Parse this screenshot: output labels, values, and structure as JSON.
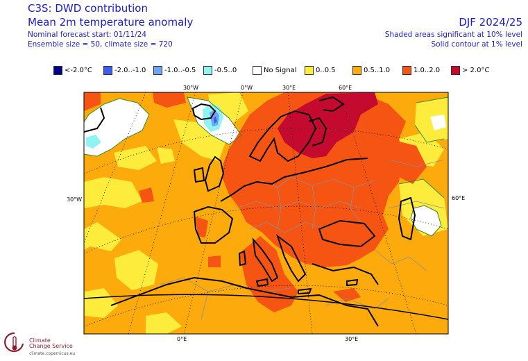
{
  "header": {
    "title": "C3S: DWD contribution",
    "subtitle": "Mean 2m temperature anomaly",
    "forecast_start": "Nominal forecast start: 01/11/24",
    "ensemble": "Ensemble size = 50, climate size = 720",
    "season": "DJF 2024/25",
    "significance_shaded": "Shaded areas significant at 10% level",
    "significance_contour": "Solid contour at 1% level"
  },
  "legend": [
    {
      "label": "<-2.0°C",
      "color": "#00008b"
    },
    {
      "label": "-2.0..-1.0",
      "color": "#3d5df2"
    },
    {
      "label": "-1.0..-0.5",
      "color": "#6fa4f5"
    },
    {
      "label": "-0.5..0",
      "color": "#8ff3f3"
    },
    {
      "label": "No Signal",
      "color": "#ffffff"
    },
    {
      "label": "0..0.5",
      "color": "#fdec3b"
    },
    {
      "label": "0.5..1.0",
      "color": "#fdab0c"
    },
    {
      "label": "1.0..2.0",
      "color": "#f55413"
    },
    {
      "label": "> 2.0°C",
      "color": "#c40a2e"
    }
  ],
  "map_labels": {
    "top": [
      "30°W",
      "0°W",
      "30°E",
      "60°E"
    ],
    "left": "30°W",
    "right": "60°E",
    "bottom": [
      "0°E",
      "30°E"
    ]
  },
  "logo": {
    "name_line1": "Climate",
    "name_line2": "Change Service",
    "url": "climate.copernicus.eu"
  }
}
